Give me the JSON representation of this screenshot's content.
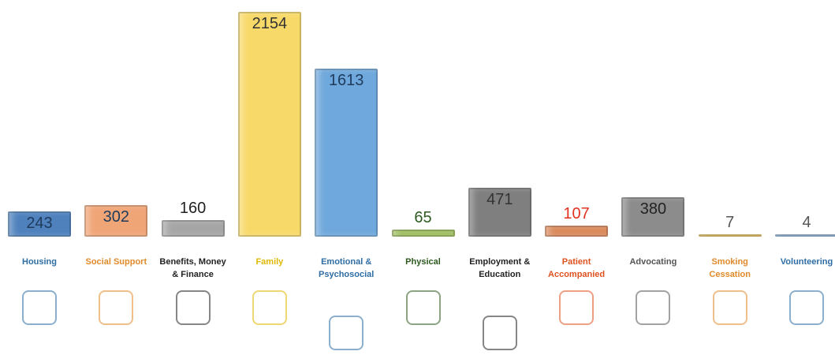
{
  "chart_data": {
    "type": "bar",
    "categories": [
      "Housing",
      "Social Support",
      "Benefits, Money & Finance",
      "Family",
      "Emotional & Psychosocial",
      "Physical",
      "Employment & Education",
      "Patient Accompanied",
      "Advocating",
      "Smoking Cessation",
      "Volunteering"
    ],
    "values": [
      243,
      302,
      160,
      2154,
      1613,
      65,
      471,
      107,
      380,
      7,
      4
    ],
    "colors": [
      "#4f81bd",
      "#f0a577",
      "#a6a6a6",
      "#f7d96a",
      "#6fa8dc",
      "#9bbb59",
      "#7f7f7f",
      "#d9895b",
      "#8c8c8c",
      "#e6b84a",
      "#7fa7d4"
    ],
    "label_colors": [
      "#2e6da4",
      "#e08a2a",
      "#222222",
      "#e0b800",
      "#2e6da4",
      "#2d5a1e",
      "#222222",
      "#e0521f",
      "#555555",
      "#e08a2a",
      "#2e6da4"
    ],
    "value_colors": [
      "#1f3b5c",
      "#1f3b5c",
      "#222222",
      "#333333",
      "#1f3b5c",
      "#2d5a1e",
      "#333333",
      "#e0321f",
      "#222222",
      "#555555",
      "#555555"
    ]
  }
}
